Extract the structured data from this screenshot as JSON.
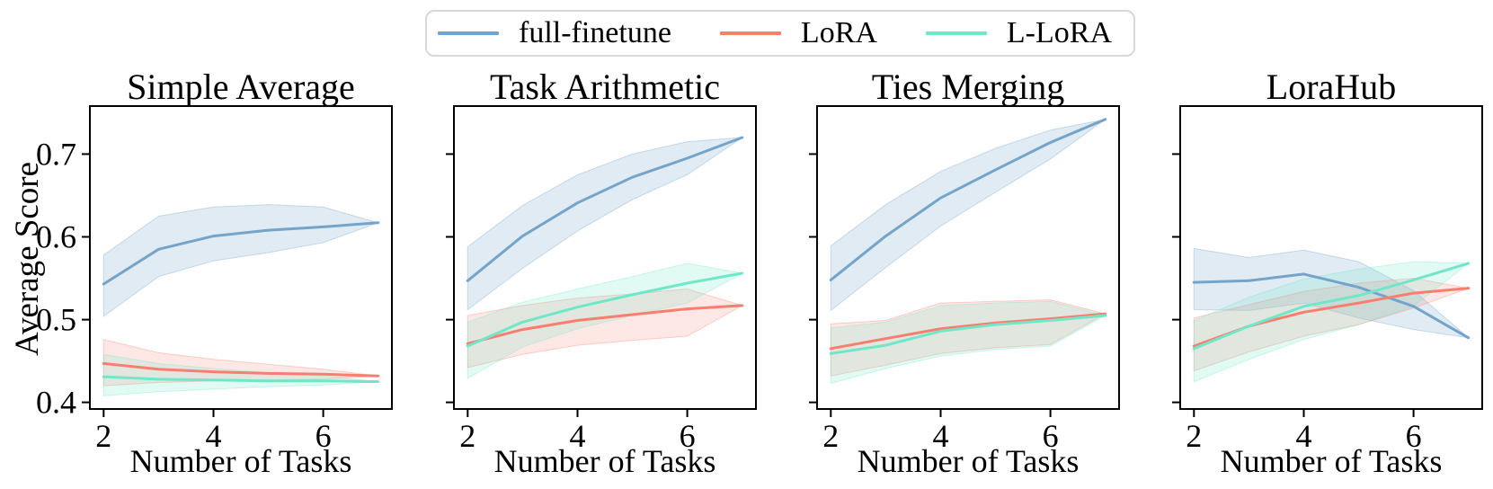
{
  "figure": {
    "ylabel": "Average Score",
    "background": "#ffffff",
    "frame_color": "#000000"
  },
  "legend": {
    "border_color": "#d8d8d8",
    "items": [
      {
        "label": "full-finetune",
        "color": "#74a4c9"
      },
      {
        "label": "LoRA",
        "color": "#f87f70"
      },
      {
        "label": "L-LoRA",
        "color": "#6fe7c8"
      }
    ]
  },
  "chart_data": [
    {
      "type": "line",
      "title": "Simple Average",
      "xlabel": "Number of Tasks",
      "ylabel": "Average Score",
      "x": [
        2,
        3,
        4,
        5,
        6,
        7
      ],
      "xticks": [
        2,
        4,
        6
      ],
      "yticks": [
        0.4,
        0.5,
        0.6,
        0.7
      ],
      "xlim": [
        1.75,
        7.25
      ],
      "ylim": [
        0.392,
        0.758
      ],
      "show_ytick_labels": true,
      "grid": false,
      "series": [
        {
          "name": "full-finetune",
          "color": "#74a4c9",
          "band_alpha": 0.22,
          "values": [
            0.543,
            0.585,
            0.601,
            0.608,
            0.612,
            0.617
          ],
          "band_lower": [
            0.504,
            0.552,
            0.571,
            0.581,
            0.593,
            0.617
          ],
          "band_upper": [
            0.578,
            0.625,
            0.636,
            0.639,
            0.636,
            0.617
          ]
        },
        {
          "name": "LoRA",
          "color": "#f87f70",
          "band_alpha": 0.18,
          "values": [
            0.447,
            0.44,
            0.437,
            0.435,
            0.434,
            0.432
          ],
          "band_lower": [
            0.42,
            0.424,
            0.426,
            0.427,
            0.428,
            0.432
          ],
          "band_upper": [
            0.476,
            0.46,
            0.452,
            0.446,
            0.44,
            0.432
          ]
        },
        {
          "name": "L-LoRA",
          "color": "#6fe7c8",
          "band_alpha": 0.2,
          "values": [
            0.431,
            0.428,
            0.427,
            0.426,
            0.426,
            0.425
          ],
          "band_lower": [
            0.408,
            0.413,
            0.416,
            0.419,
            0.421,
            0.425
          ],
          "band_upper": [
            0.458,
            0.447,
            0.441,
            0.436,
            0.432,
            0.425
          ]
        }
      ]
    },
    {
      "type": "line",
      "title": "Task Arithmetic",
      "xlabel": "Number of Tasks",
      "x": [
        2,
        3,
        4,
        5,
        6,
        7
      ],
      "xticks": [
        2,
        4,
        6
      ],
      "yticks": [
        0.4,
        0.5,
        0.6,
        0.7
      ],
      "xlim": [
        1.75,
        7.25
      ],
      "ylim": [
        0.392,
        0.758
      ],
      "show_ytick_labels": false,
      "grid": false,
      "series": [
        {
          "name": "full-finetune",
          "color": "#74a4c9",
          "band_alpha": 0.22,
          "values": [
            0.547,
            0.601,
            0.641,
            0.672,
            0.695,
            0.72
          ],
          "band_lower": [
            0.512,
            0.562,
            0.607,
            0.645,
            0.675,
            0.72
          ],
          "band_upper": [
            0.588,
            0.638,
            0.675,
            0.7,
            0.715,
            0.72
          ]
        },
        {
          "name": "LoRA",
          "color": "#f87f70",
          "band_alpha": 0.18,
          "values": [
            0.471,
            0.488,
            0.499,
            0.506,
            0.513,
            0.517
          ],
          "band_lower": [
            0.442,
            0.458,
            0.469,
            0.475,
            0.48,
            0.517
          ],
          "band_upper": [
            0.505,
            0.517,
            0.526,
            0.531,
            0.537,
            0.517
          ]
        },
        {
          "name": "L-LoRA",
          "color": "#6fe7c8",
          "band_alpha": 0.2,
          "values": [
            0.468,
            0.497,
            0.515,
            0.53,
            0.544,
            0.556
          ],
          "band_lower": [
            0.429,
            0.467,
            0.489,
            0.505,
            0.52,
            0.556
          ],
          "band_upper": [
            0.497,
            0.521,
            0.537,
            0.552,
            0.568,
            0.556
          ]
        }
      ]
    },
    {
      "type": "line",
      "title": "Ties Merging",
      "xlabel": "Number of Tasks",
      "x": [
        2,
        3,
        4,
        5,
        6,
        7
      ],
      "xticks": [
        2,
        4,
        6
      ],
      "yticks": [
        0.4,
        0.5,
        0.6,
        0.7
      ],
      "xlim": [
        1.75,
        7.25
      ],
      "ylim": [
        0.392,
        0.758
      ],
      "show_ytick_labels": false,
      "grid": false,
      "series": [
        {
          "name": "full-finetune",
          "color": "#74a4c9",
          "band_alpha": 0.22,
          "values": [
            0.548,
            0.601,
            0.647,
            0.681,
            0.714,
            0.742
          ],
          "band_lower": [
            0.511,
            0.563,
            0.613,
            0.654,
            0.694,
            0.742
          ],
          "band_upper": [
            0.589,
            0.639,
            0.679,
            0.707,
            0.729,
            0.742
          ]
        },
        {
          "name": "LoRA",
          "color": "#f87f70",
          "band_alpha": 0.18,
          "values": [
            0.465,
            0.477,
            0.489,
            0.496,
            0.501,
            0.507
          ],
          "band_lower": [
            0.432,
            0.445,
            0.459,
            0.466,
            0.47,
            0.507
          ],
          "band_upper": [
            0.495,
            0.499,
            0.52,
            0.522,
            0.524,
            0.507
          ]
        },
        {
          "name": "L-LoRA",
          "color": "#6fe7c8",
          "band_alpha": 0.2,
          "values": [
            0.459,
            0.469,
            0.486,
            0.494,
            0.499,
            0.505
          ],
          "band_lower": [
            0.423,
            0.441,
            0.456,
            0.464,
            0.468,
            0.505
          ],
          "band_upper": [
            0.49,
            0.497,
            0.517,
            0.52,
            0.522,
            0.505
          ]
        }
      ]
    },
    {
      "type": "line",
      "title": "LoraHub",
      "xlabel": "Number of Tasks",
      "x": [
        2,
        3,
        4,
        5,
        6,
        7
      ],
      "xticks": [
        2,
        4,
        6
      ],
      "yticks": [
        0.4,
        0.5,
        0.6,
        0.7
      ],
      "xlim": [
        1.75,
        7.25
      ],
      "ylim": [
        0.392,
        0.758
      ],
      "show_ytick_labels": false,
      "grid": false,
      "series": [
        {
          "name": "full-finetune",
          "color": "#74a4c9",
          "band_alpha": 0.22,
          "values": [
            0.545,
            0.547,
            0.555,
            0.539,
            0.516,
            0.478
          ],
          "band_lower": [
            0.512,
            0.511,
            0.52,
            0.502,
            0.488,
            0.478
          ],
          "band_upper": [
            0.586,
            0.575,
            0.584,
            0.57,
            0.535,
            0.478
          ]
        },
        {
          "name": "LoRA",
          "color": "#f87f70",
          "band_alpha": 0.18,
          "values": [
            0.468,
            0.492,
            0.509,
            0.52,
            0.532,
            0.538
          ],
          "band_lower": [
            0.438,
            0.461,
            0.48,
            0.494,
            0.514,
            0.538
          ],
          "band_upper": [
            0.502,
            0.518,
            0.534,
            0.544,
            0.55,
            0.538
          ]
        },
        {
          "name": "L-LoRA",
          "color": "#6fe7c8",
          "band_alpha": 0.2,
          "values": [
            0.465,
            0.492,
            0.516,
            0.529,
            0.548,
            0.568
          ],
          "band_lower": [
            0.425,
            0.452,
            0.476,
            0.494,
            0.516,
            0.568
          ],
          "band_upper": [
            0.499,
            0.527,
            0.549,
            0.561,
            0.57,
            0.568
          ]
        }
      ]
    }
  ]
}
